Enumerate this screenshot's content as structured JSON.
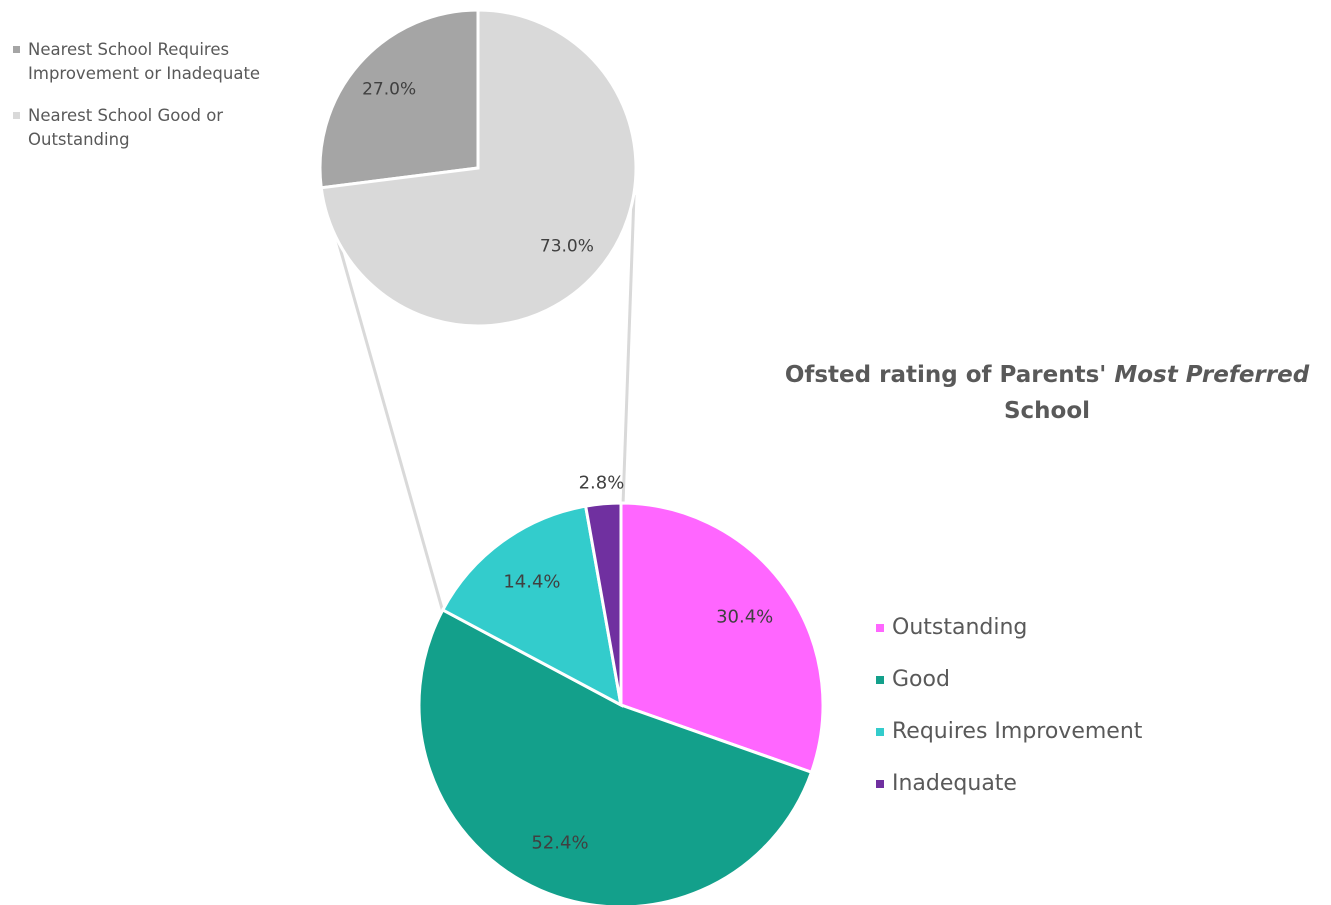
{
  "chart_data": [
    {
      "type": "pie",
      "title_parts": [
        "Ofsted rating of Parents'",
        "Most Preferred",
        "School"
      ],
      "categories": [
        "Outstanding",
        "Good",
        "Requires Improvement",
        "Inadequate"
      ],
      "values": [
        30.4,
        52.4,
        14.4,
        2.8
      ],
      "value_labels": [
        "30.4%",
        "52.4%",
        "14.4%",
        "2.8%"
      ],
      "colors": [
        "#ff66ff",
        "#13a08b",
        "#33cccc",
        "#7030a0"
      ]
    },
    {
      "type": "pie",
      "categories": [
        "Nearest School Requires Improvement or Inadequate",
        "Nearest School Good or Outstanding"
      ],
      "values": [
        27.0,
        73.0
      ],
      "value_labels": [
        "27.0%",
        "73.0%"
      ],
      "colors": [
        "#a5a5a5",
        "#d9d9d9"
      ]
    }
  ]
}
